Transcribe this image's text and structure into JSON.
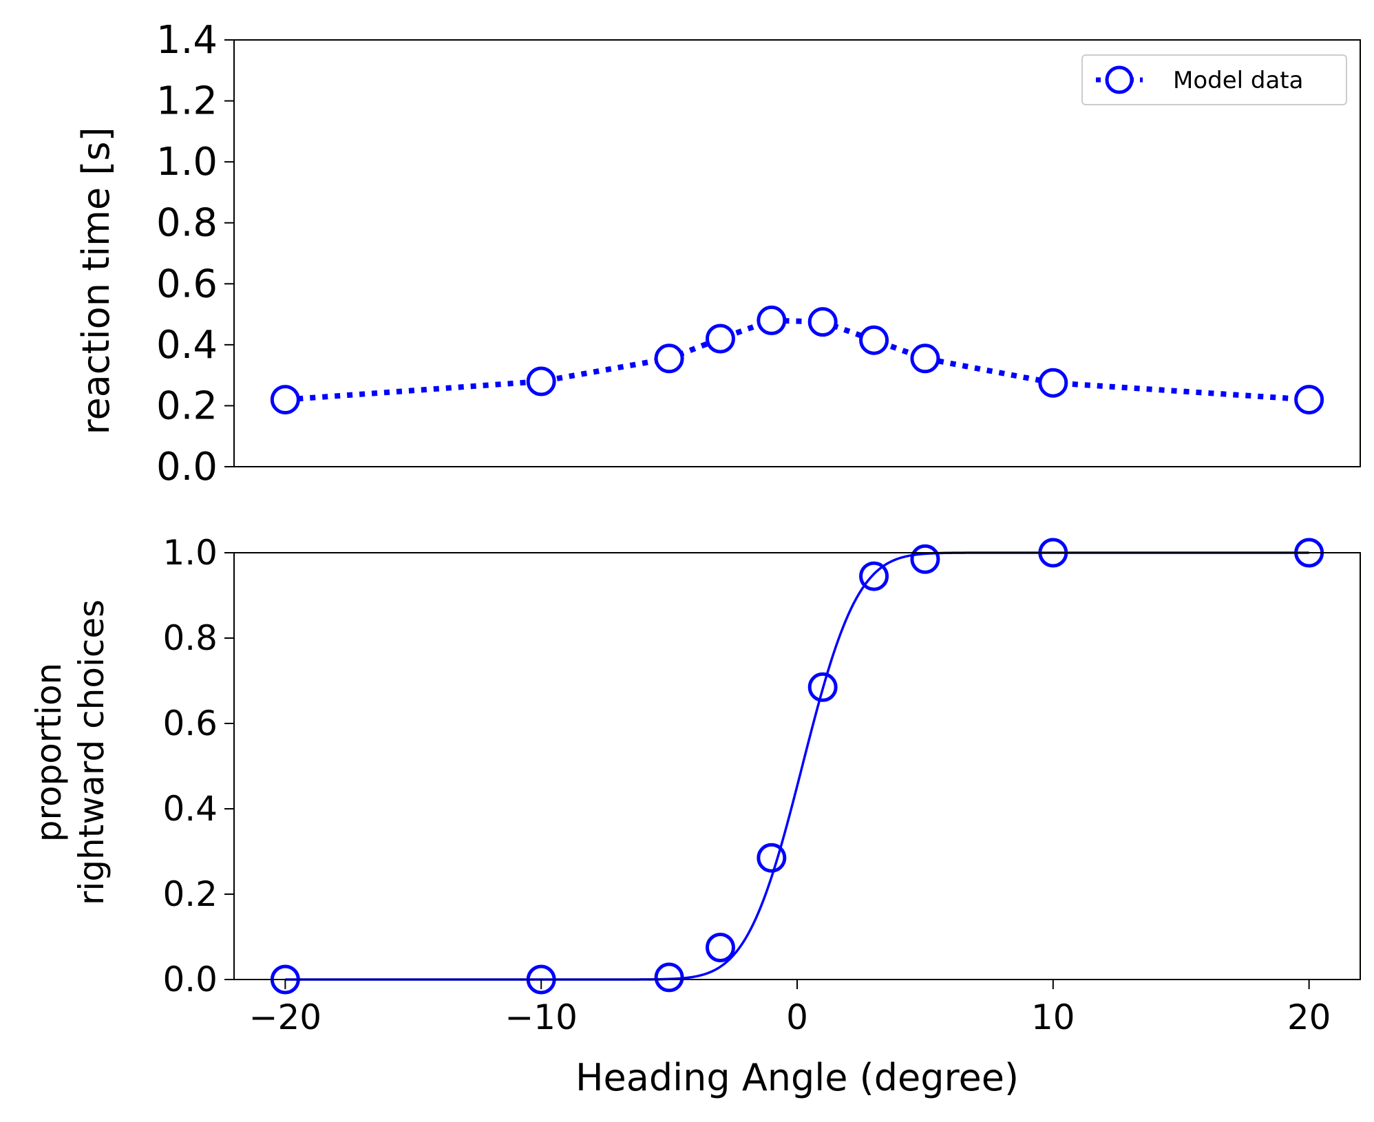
{
  "colors": {
    "series": "#0000ff",
    "axis": "#000000",
    "background": "#ffffff"
  },
  "legend": {
    "label": "Model data",
    "placement": "upper right"
  },
  "chart_data": [
    {
      "type": "line",
      "xlabel": "",
      "ylabel": "reaction time [s]",
      "xlim": [
        -22,
        22
      ],
      "ylim": [
        0,
        1.4
      ],
      "yticks": [
        0.0,
        0.2,
        0.4,
        0.6,
        0.8,
        1.0,
        1.2,
        1.4
      ],
      "ytick_labels": [
        "0.0",
        "0.2",
        "0.4",
        "0.6",
        "0.8",
        "1.0",
        "1.2",
        "1.4"
      ],
      "show_xticks": false,
      "grid": false,
      "legend": "upper right",
      "series": [
        {
          "name": "Model data",
          "line_style": "dotted",
          "marker": "open-circle",
          "x": [
            -20,
            -10,
            -5,
            -3,
            -1,
            1,
            3,
            5,
            10,
            20
          ],
          "y": [
            0.22,
            0.28,
            0.355,
            0.42,
            0.48,
            0.475,
            0.415,
            0.355,
            0.275,
            0.22
          ]
        }
      ]
    },
    {
      "type": "scatter",
      "xlabel": "Heading Angle (degree)",
      "ylabel_lines": [
        "proportion",
        "rightward choices"
      ],
      "xlim": [
        -22,
        22
      ],
      "ylim": [
        0,
        1.0
      ],
      "xticks": [
        -20,
        -10,
        0,
        10,
        20
      ],
      "xtick_labels": [
        "−20",
        "−10",
        "0",
        "10",
        "20"
      ],
      "yticks": [
        0.0,
        0.2,
        0.4,
        0.6,
        0.8,
        1.0
      ],
      "ytick_labels": [
        "0.0",
        "0.2",
        "0.4",
        "0.6",
        "0.8",
        "1.0"
      ],
      "grid": false,
      "series": [
        {
          "name": "Model data",
          "marker": "open-circle",
          "x": [
            -20,
            -10,
            -5,
            -3,
            -1,
            1,
            3,
            5,
            10,
            20
          ],
          "y": [
            0.0,
            0.0,
            0.005,
            0.075,
            0.285,
            0.685,
            0.945,
            0.985,
            1.0,
            1.0
          ]
        }
      ],
      "fit": {
        "kind": "cumulative-gaussian",
        "mu": 0.2,
        "sigma": 1.7
      }
    }
  ]
}
